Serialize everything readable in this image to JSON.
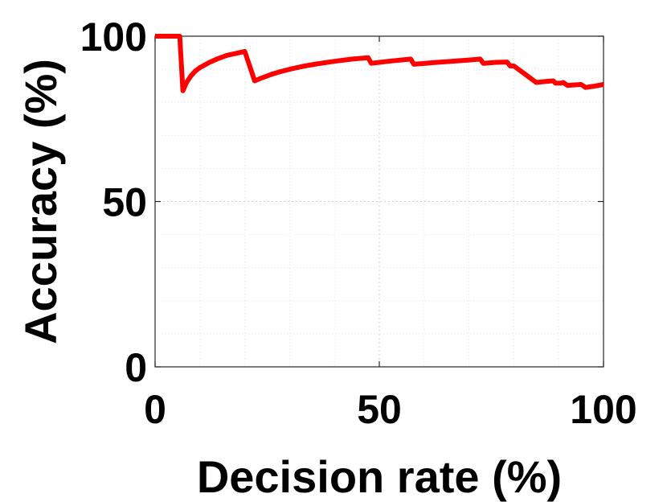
{
  "chart_data": {
    "type": "line",
    "xlabel": "Decision rate (%)",
    "ylabel": "Accuracy (%)",
    "xlim": [
      0,
      100
    ],
    "ylim": [
      0,
      100
    ],
    "xticks": [
      0,
      50,
      100
    ],
    "yticks": [
      0,
      50,
      100
    ],
    "grid": true,
    "minor_grid": true,
    "series": [
      {
        "color": "#ff0000",
        "x": [
          0,
          5.5,
          6.2,
          7,
          8,
          9,
          10,
          12,
          14,
          16,
          18,
          20,
          22.2,
          24,
          26,
          28,
          30,
          33,
          36,
          40,
          44,
          47.5,
          48.2,
          52,
          57,
          57.7,
          62,
          66,
          70,
          72.5,
          73.2,
          76,
          78.5,
          79.2,
          80,
          82,
          84,
          85,
          87,
          88.8,
          89.3,
          90.5,
          91,
          92,
          93,
          94,
          95,
          96,
          97,
          98,
          100
        ],
        "y": [
          100,
          100,
          83.5,
          86,
          88,
          89.5,
          90.5,
          92,
          93.2,
          94.2,
          94.8,
          95.4,
          86.5,
          87.5,
          88.5,
          89.3,
          90,
          90.9,
          91.6,
          92.4,
          93.1,
          93.5,
          91.8,
          92.4,
          93.1,
          91.5,
          92,
          92.4,
          92.8,
          93.1,
          91.8,
          92.1,
          92.2,
          91,
          91,
          89,
          87,
          86,
          86.3,
          86.5,
          85.8,
          85.8,
          86,
          85.1,
          85.2,
          85.3,
          85.4,
          84.5,
          84.7,
          84.9,
          85.4
        ]
      }
    ]
  }
}
